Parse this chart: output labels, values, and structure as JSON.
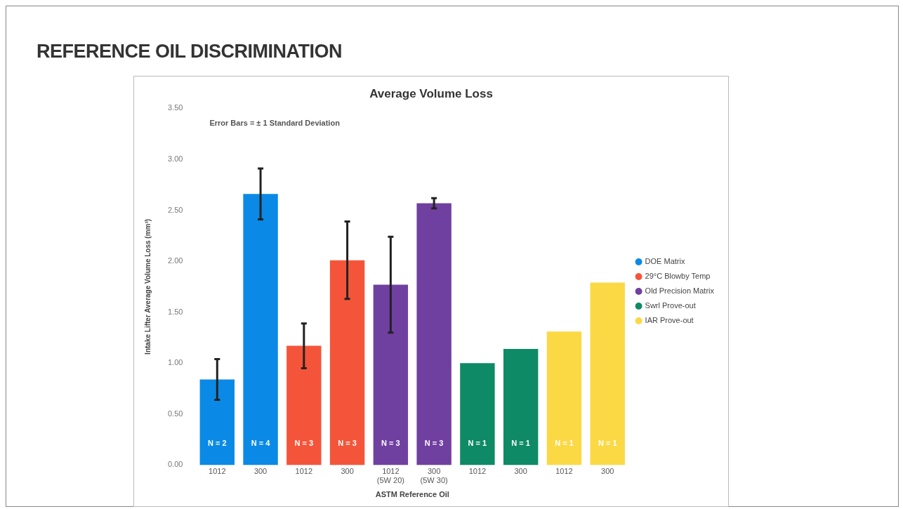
{
  "chart_data": {
    "type": "bar",
    "title": "REFERENCE OIL DISCRIMINATION",
    "subtitle": "Average Volume Loss",
    "xlabel": "ASTM Reference Oil",
    "ylabel": "Intake Lifter Average Volume Loss (mm³)",
    "categories": [
      "1012",
      "300",
      "1012",
      "300",
      "1012 (5W 20)",
      "300 (5W 30)",
      "1012",
      "300",
      "1012",
      "300"
    ],
    "series": [
      {
        "name": "DOE Matrix",
        "color": "#0a8ae6",
        "values": [
          0.84,
          2.66,
          null,
          null,
          null,
          null,
          null,
          null,
          null,
          null
        ],
        "errors": [
          0.2,
          0.25,
          null,
          null,
          null,
          null,
          null,
          null,
          null,
          null
        ]
      },
      {
        "name": "29°C Blowby Temp",
        "color": "#f4553a",
        "values": [
          null,
          null,
          1.17,
          2.01,
          null,
          null,
          null,
          null,
          null,
          null
        ],
        "errors": [
          null,
          null,
          0.22,
          0.38,
          null,
          null,
          null,
          null,
          null,
          null
        ]
      },
      {
        "name": "Old Precision Matrix",
        "color": "#7040a0",
        "values": [
          null,
          null,
          null,
          null,
          1.77,
          2.57,
          null,
          null,
          null,
          null
        ],
        "errors": [
          null,
          null,
          null,
          null,
          0.47,
          0.05,
          null,
          null,
          null,
          null
        ]
      },
      {
        "name": "Swrl Prove-out",
        "color": "#0f8a66",
        "values": [
          null,
          null,
          null,
          null,
          null,
          null,
          1.0,
          1.14,
          null,
          null
        ]
      },
      {
        "name": "IAR Prove-out",
        "color": "#fbd945",
        "values": [
          null,
          null,
          null,
          null,
          null,
          null,
          null,
          null,
          1.31,
          1.79
        ]
      }
    ],
    "ylim": [
      0,
      3.5
    ],
    "yticks": [
      {
        "value": 0,
        "label": "0.00"
      },
      {
        "value": 0.5,
        "label": "0.50"
      },
      {
        "value": 1,
        "label": "1.00"
      },
      {
        "value": 1.5,
        "label": "1.50"
      },
      {
        "value": 2,
        "label": "2.00"
      },
      {
        "value": 2.5,
        "label": "2.50"
      },
      {
        "value": 3,
        "label": "3.00"
      },
      {
        "value": 3.5,
        "label": "3.50"
      }
    ],
    "grid": false,
    "legend": "right",
    "annotations": [
      "Error Bars = ± 1 Standard Deviation",
      "N = 2",
      "N = 4",
      "N = 3",
      "N = 3",
      "N = 3",
      "N = 3",
      "N = 1",
      "N = 1",
      "N = 1",
      "N = 1"
    ]
  }
}
